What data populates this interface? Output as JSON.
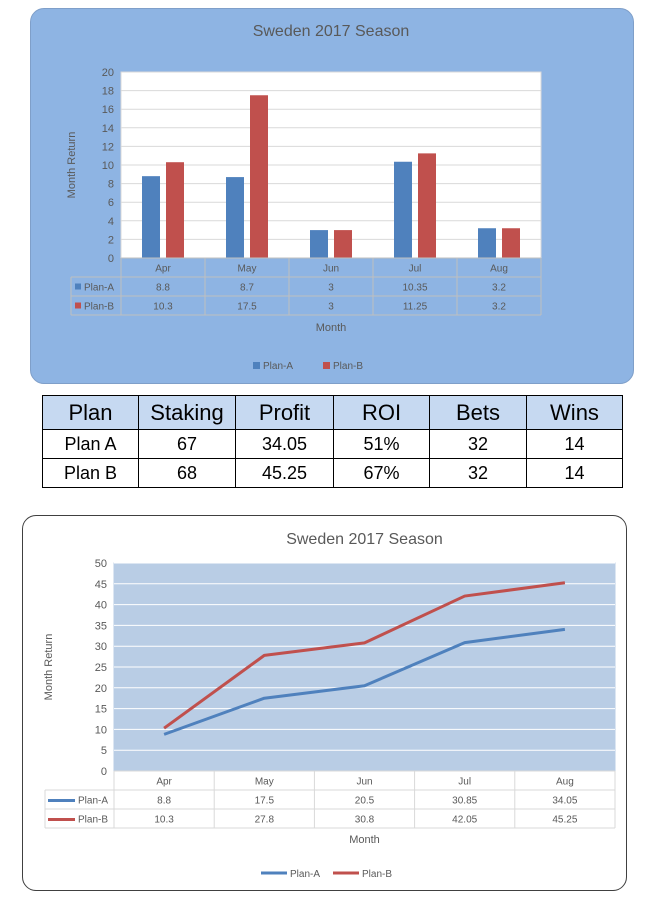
{
  "chart_data": [
    {
      "type": "bar",
      "title": "Sweden 2017 Season",
      "xlabel": "Month",
      "ylabel": "Month Return",
      "categories": [
        "Apr",
        "May",
        "Jun",
        "Jul",
        "Aug"
      ],
      "ylim": [
        0,
        20
      ],
      "yticks": [
        0,
        2,
        4,
        6,
        8,
        10,
        12,
        14,
        16,
        18,
        20
      ],
      "grid": true,
      "legend": "bottom",
      "data_table": true,
      "series": [
        {
          "name": "Plan-A",
          "color": "#4f81bd",
          "values": [
            8.8,
            8.7,
            3,
            10.35,
            3.2
          ],
          "labels": [
            "8.8",
            "8.7",
            "3",
            "10.35",
            "3.2"
          ]
        },
        {
          "name": "Plan-B",
          "color": "#c0504d",
          "values": [
            10.3,
            17.5,
            3,
            11.25,
            3.2
          ],
          "labels": [
            "10.3",
            "17.5",
            "3",
            "11.25",
            "3.2"
          ]
        }
      ]
    },
    {
      "type": "line",
      "title": "Sweden 2017 Season",
      "xlabel": "Month",
      "ylabel": "Month Return",
      "categories": [
        "Apr",
        "May",
        "Jun",
        "Jul",
        "Aug"
      ],
      "ylim": [
        0,
        50
      ],
      "yticks": [
        0,
        5,
        10,
        15,
        20,
        25,
        30,
        35,
        40,
        45,
        50
      ],
      "grid": true,
      "legend": "bottom",
      "data_table": true,
      "series": [
        {
          "name": "Plan-A",
          "color": "#4f81bd",
          "values": [
            8.8,
            17.5,
            20.5,
            30.85,
            34.05
          ],
          "labels": [
            "8.8",
            "17.5",
            "20.5",
            "30.85",
            "34.05"
          ]
        },
        {
          "name": "Plan-B",
          "color": "#c0504d",
          "values": [
            10.3,
            27.8,
            30.8,
            42.05,
            45.25
          ],
          "labels": [
            "10.3",
            "27.8",
            "30.8",
            "42.05",
            "45.25"
          ]
        }
      ]
    }
  ],
  "summary_table": {
    "headers": [
      "Plan",
      "Staking",
      "Profit",
      "ROI",
      "Bets",
      "Wins"
    ],
    "rows": [
      [
        "Plan A",
        "67",
        "34.05",
        "51%",
        "32",
        "14"
      ],
      [
        "Plan B",
        "68",
        "45.25",
        "67%",
        "32",
        "14"
      ]
    ]
  }
}
